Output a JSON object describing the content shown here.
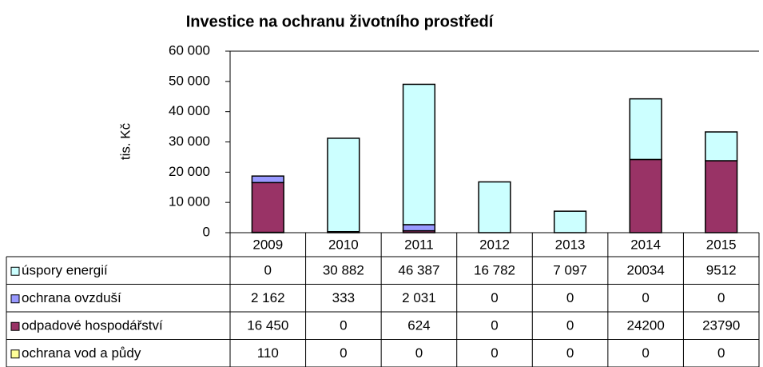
{
  "chart_data": {
    "type": "stacked_bar",
    "title": "Investice na ochranu životního prostředí",
    "y_label": "tis. Kč",
    "categories": [
      "2009",
      "2010",
      "2011",
      "2012",
      "2013",
      "2014",
      "2015"
    ],
    "series": [
      {
        "name": "úspory energií",
        "color": "#ccffff",
        "values": [
          0,
          30882,
          46387,
          16782,
          7097,
          20034,
          9512
        ],
        "value_labels": [
          "0",
          "30 882",
          "46 387",
          "16 782",
          "7 097",
          "20034",
          "9512"
        ]
      },
      {
        "name": "ochrana ovzduší",
        "color": "#9999ff",
        "values": [
          2162,
          333,
          2031,
          0,
          0,
          0,
          0
        ],
        "value_labels": [
          "2 162",
          "333",
          "2 031",
          "0",
          "0",
          "0",
          "0"
        ]
      },
      {
        "name": "odpadové hospodářství",
        "color": "#993366",
        "values": [
          16450,
          0,
          624,
          0,
          0,
          24200,
          23790
        ],
        "value_labels": [
          "16 450",
          "0",
          "624",
          "0",
          "0",
          "24200",
          "23790"
        ]
      },
      {
        "name": "ochrana vod a půdy",
        "color": "#ffff99",
        "values": [
          110,
          0,
          0,
          0,
          0,
          0,
          0
        ],
        "value_labels": [
          "110",
          "0",
          "0",
          "0",
          "0",
          "0",
          "0"
        ]
      }
    ],
    "ylim": [
      0,
      60000
    ],
    "yticks": [
      0,
      {
        "value": 10000,
        "label": "10 000"
      },
      {
        "value": 20000,
        "label": "20 000"
      },
      {
        "value": 30000,
        "label": "30 000"
      },
      {
        "value": 40000,
        "label": "40 000"
      },
      {
        "value": 50000,
        "label": "50 000"
      },
      {
        "value": 60000,
        "label": "60 000"
      }
    ],
    "grid": false
  }
}
